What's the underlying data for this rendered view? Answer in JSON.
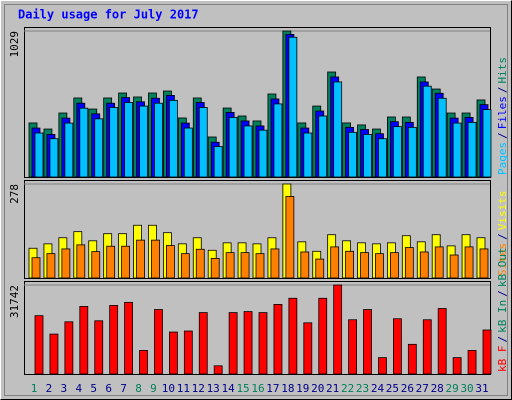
{
  "chart_data": [
    {
      "type": "bar",
      "title": "Daily usage for July 2017",
      "legend_separator": "/",
      "ylim": [
        0,
        1029
      ],
      "yticks": [
        1029
      ],
      "series": [
        {
          "name": "Pages",
          "color": "#00c0ff",
          "values": [
            310,
            270,
            380,
            485,
            410,
            490,
            525,
            500,
            520,
            540,
            345,
            490,
            215,
            420,
            360,
            330,
            515,
            985,
            310,
            430,
            670,
            315,
            300,
            270,
            355,
            350,
            640,
            555,
            380,
            385,
            475
          ]
        },
        {
          "name": "Files",
          "color": "#0000ff",
          "values": [
            345,
            300,
            415,
            520,
            445,
            520,
            560,
            530,
            555,
            575,
            380,
            525,
            245,
            455,
            395,
            360,
            550,
            1005,
            345,
            465,
            705,
            350,
            335,
            305,
            390,
            385,
            670,
            590,
            415,
            420,
            510
          ]
        },
        {
          "name": "Hits",
          "color": "#00805c",
          "values": [
            381,
            338,
            451,
            557,
            479,
            557,
            592,
            564,
            592,
            606,
            416,
            557,
            282,
            486,
            430,
            395,
            585,
            1029,
            381,
            500,
            740,
            381,
            367,
            338,
            423,
            423,
            705,
            620,
            451,
            451,
            543
          ]
        }
      ]
    },
    {
      "type": "bar",
      "legend_separator": "/",
      "ylim": [
        0,
        278
      ],
      "yticks": [
        278
      ],
      "series": [
        {
          "name": "Sites",
          "color": "#ff8000",
          "values": [
            60,
            72,
            86,
            98,
            78,
            94,
            94,
            112,
            112,
            96,
            72,
            85,
            58,
            75,
            75,
            72,
            86,
            241,
            77,
            56,
            92,
            79,
            75,
            72,
            75,
            90,
            77,
            92,
            68,
            92,
            86
          ]
        },
        {
          "name": "Visits",
          "color": "#ffff00",
          "values": [
            88,
            101,
            119,
            137,
            110,
            131,
            131,
            156,
            156,
            134,
            101,
            119,
            82,
            104,
            104,
            101,
            119,
            278,
            107,
            79,
            128,
            110,
            104,
            101,
            104,
            125,
            107,
            128,
            95,
            128,
            119
          ]
        }
      ]
    },
    {
      "type": "bar",
      "legend_separator": "/",
      "ylim": [
        0,
        31742
      ],
      "yticks": [
        31742
      ],
      "categories": [
        "1",
        "2",
        "3",
        "4",
        "5",
        "6",
        "7",
        "8",
        "9",
        "10",
        "11",
        "12",
        "13",
        "14",
        "15",
        "16",
        "17",
        "18",
        "19",
        "20",
        "21",
        "22",
        "23",
        "24",
        "25",
        "26",
        "27",
        "28",
        "29",
        "30",
        "31"
      ],
      "category_colors": [
        "#00805c",
        "#00008b",
        "#00008b",
        "#00008b",
        "#00008b",
        "#00008b",
        "#00008b",
        "#00805c",
        "#00805c",
        "#00008b",
        "#00008b",
        "#00008b",
        "#00008b",
        "#00008b",
        "#00805c",
        "#00805c",
        "#00008b",
        "#00008b",
        "#00008b",
        "#00008b",
        "#00008b",
        "#00805c",
        "#00805c",
        "#00008b",
        "#00008b",
        "#00008b",
        "#00008b",
        "#00008b",
        "#00805c",
        "#00805c",
        "#00008b"
      ],
      "series": [
        {
          "name": "kB F",
          "color": "#ff0000",
          "values": [
            20805,
            14235,
            18615,
            24090,
            18980,
            24455,
            25550,
            8395,
            22995,
            14965,
            15330,
            21900,
            2920,
            21900,
            22265,
            21900,
            24820,
            27010,
            18250,
            27010,
            31742,
            19345,
            22995,
            5840,
            19710,
            10585,
            19345,
            23360,
            5840,
            8395,
            15695
          ]
        },
        {
          "name": "kB In",
          "color": "#00805c",
          "values": [
            null,
            null,
            null,
            null,
            null,
            null,
            null,
            null,
            null,
            null,
            null,
            null,
            null,
            null,
            null,
            null,
            null,
            null,
            null,
            null,
            null,
            null,
            null,
            null,
            null,
            null,
            null,
            null,
            null,
            null,
            null
          ]
        },
        {
          "name": "kB Out",
          "color": "#00805c",
          "values": [
            null,
            null,
            null,
            null,
            null,
            null,
            null,
            null,
            null,
            null,
            null,
            null,
            null,
            null,
            null,
            null,
            null,
            null,
            null,
            null,
            null,
            null,
            null,
            null,
            null,
            null,
            null,
            null,
            null,
            null,
            null
          ]
        }
      ]
    }
  ]
}
